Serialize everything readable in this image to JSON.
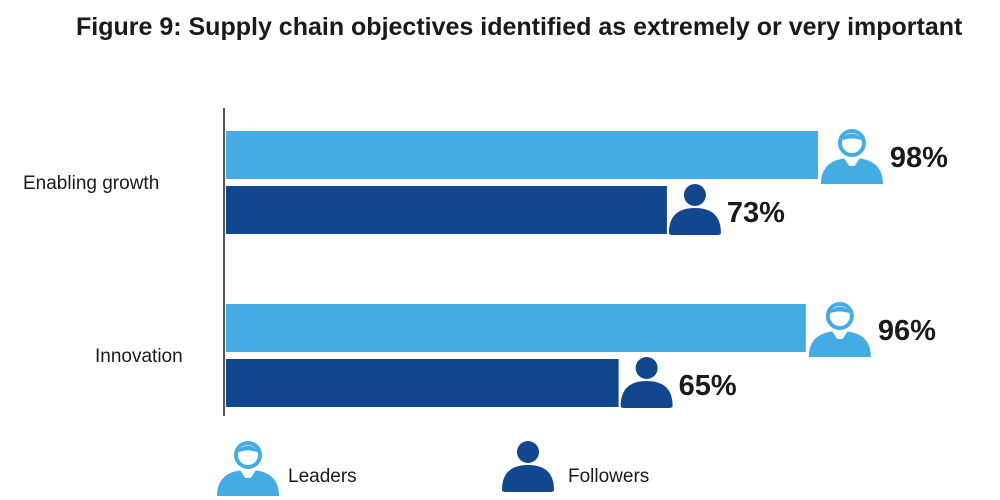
{
  "title": "Figure 9: Supply chain objectives identified as extremely or very important",
  "colors": {
    "leaders": "#45abe3",
    "followers": "#12478f",
    "axis": "#555555"
  },
  "chart_data": {
    "type": "bar",
    "orientation": "horizontal",
    "categories": [
      "Enabling growth",
      "Innovation"
    ],
    "series": [
      {
        "name": "Leaders",
        "values": [
          98,
          96
        ],
        "labels": [
          "98%",
          "96%"
        ],
        "icon": "leader-person-icon"
      },
      {
        "name": "Followers",
        "values": [
          73,
          65
        ],
        "labels": [
          "73%",
          "65%"
        ],
        "icon": "follower-person-icon"
      }
    ],
    "xlim": [
      0,
      100
    ],
    "legend": "bottom",
    "grid": false
  }
}
